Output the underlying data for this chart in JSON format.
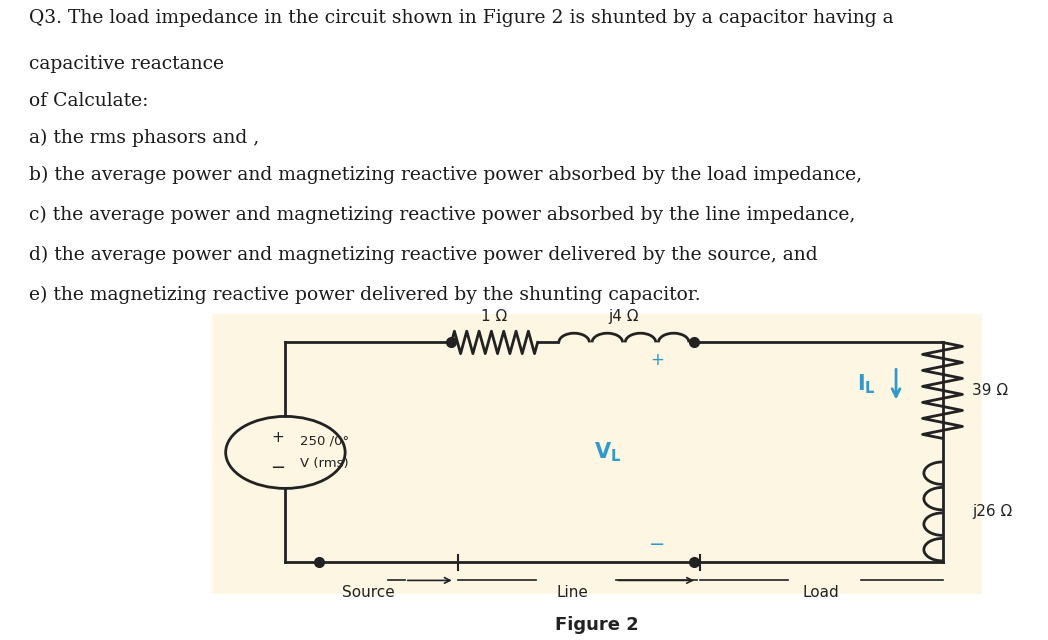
{
  "bg_color": "#ffffff",
  "circuit_bg": "#fdf6e3",
  "text_color": "#1a1a1a",
  "wire_color": "#222222",
  "cyan_color": "#3399cc",
  "title_lines": [
    "Q3. The load impedance in the circuit shown in Figure 2 is shunted by a capacitor having a",
    "capacitive reactance",
    "of Calculate:",
    "a) the rms phasors and ,",
    "b) the average power and magnetizing reactive power absorbed by the load impedance,",
    "c) the average power and magnetizing reactive power absorbed by the line impedance,",
    "d) the average power and magnetizing reactive power delivered by the source, and",
    "e) the magnetizing reactive power delivered by the shunting capacitor."
  ],
  "figure_caption": "Figure 2",
  "resistor_label": "1 Ω",
  "inductor_label": "j4 Ω",
  "load_R_label": "39 Ω",
  "load_L_label": "j26 Ω",
  "source_section": "Source",
  "line_section": "Line",
  "load_section": "Load",
  "font_size_text": 13.5,
  "font_size_circuit": 11
}
